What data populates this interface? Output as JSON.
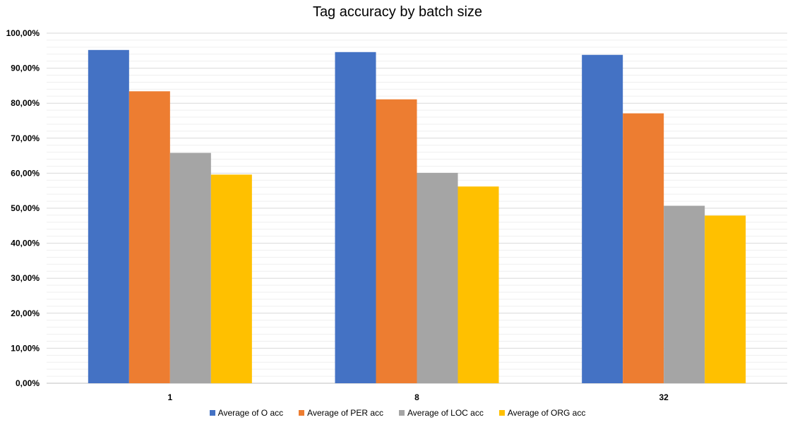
{
  "chart_data": {
    "type": "bar",
    "title": "Tag accuracy by batch size",
    "xlabel": "",
    "ylabel": "",
    "categories": [
      "1",
      "8",
      "32"
    ],
    "ylim": [
      0,
      100
    ],
    "y_ticks": [
      "0,00%",
      "10,00%",
      "20,00%",
      "30,00%",
      "40,00%",
      "50,00%",
      "60,00%",
      "70,00%",
      "80,00%",
      "90,00%",
      "100,00%"
    ],
    "grid": true,
    "legend_position": "bottom",
    "series": [
      {
        "name": "Average of O acc",
        "color": "#4472C4",
        "values": [
          95.2,
          94.6,
          93.8
        ]
      },
      {
        "name": "Average of PER acc",
        "color": "#ED7D31",
        "values": [
          83.4,
          81.1,
          77.1
        ]
      },
      {
        "name": "Average of LOC acc",
        "color": "#A5A5A5",
        "values": [
          65.8,
          60.1,
          50.7
        ]
      },
      {
        "name": "Average of ORG acc",
        "color": "#FFC000",
        "values": [
          59.6,
          56.2,
          47.9
        ]
      }
    ]
  }
}
